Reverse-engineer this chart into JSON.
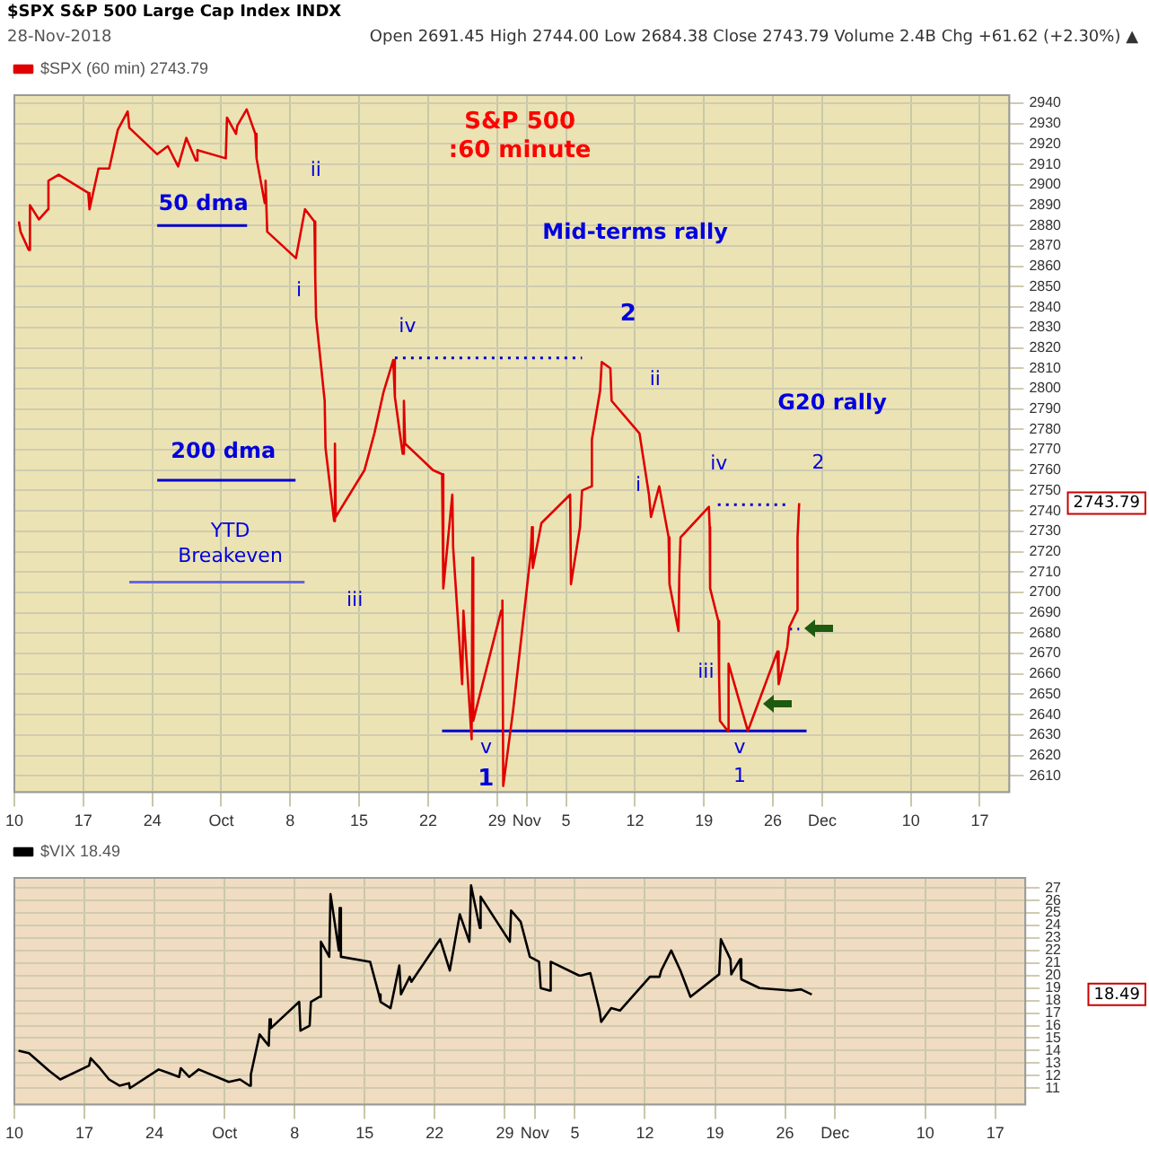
{
  "chart_data": [
    {
      "type": "line",
      "title": "$SPX S&P 500 Large Cap Index INDX",
      "subtitle": "28-Nov-2018",
      "annotations": [
        "Open 2691.45 High 2744.00 Low 2684.38 Close 2743.79 Volume 2.4B Chg +61.62 (+2.30%) ▲",
        "S&P 500\n:60 minute",
        "50 dma",
        "200 dma",
        "YTD\nBreakeven",
        "Mid-terms rally",
        "G20 rally",
        "ii",
        "i",
        "iv",
        "iii",
        "v",
        "1",
        "2",
        "ii",
        "i",
        "iv",
        "iii",
        "v",
        "1",
        "2",
        "2743.79"
      ],
      "series": [
        {
          "name": "$SPX (60 min) 2743.79",
          "color": "#e00000",
          "x": [
            "2018-09-10T11:00",
            "2018-09-10T15:00",
            "2018-09-11T11:00",
            "2018-09-11T14:00",
            "2018-09-12T12:00",
            "2018-09-13T10:00",
            "2018-09-13T11:00",
            "2018-09-14T12:00",
            "2018-09-17T12:00",
            "2018-09-17T15:00",
            "2018-09-18T13:00",
            "2018-09-19T15:00",
            "2018-09-20T12:00",
            "2018-09-21T12:00",
            "2018-09-21T16:00",
            "2018-09-24T12:00",
            "2018-09-25T14:00",
            "2018-09-26T15:00",
            "2018-09-27T11:00",
            "2018-09-28T10:00",
            "2018-09-28T14:00",
            "2018-10-01T11:00",
            "2018-10-01T14:00",
            "2018-10-02T12:00",
            "2018-10-02T15:00",
            "2018-10-03T14:00",
            "2018-10-04T11:00",
            "2018-10-04T14:00",
            "2018-10-05T10:00",
            "2018-10-05T12:00",
            "2018-10-05T16:00",
            "2018-10-08T14:00",
            "2018-10-09T12:00",
            "2018-10-10T11:00",
            "2018-10-10T13:00",
            "2018-10-10T15:00",
            "2018-10-11T12:00",
            "2018-10-11T14:00",
            "2018-10-12T11:00",
            "2018-10-12T13:00",
            "2018-10-12T15:00",
            "2018-10-15T13:00",
            "2018-10-16T13:00",
            "2018-10-17T11:00",
            "2018-10-18T11:00",
            "2018-10-18T15:00",
            "2018-10-19T10:00",
            "2018-10-19T13:00",
            "2018-10-19T16:00",
            "2018-10-22T12:00",
            "2018-10-23T10:00",
            "2018-10-23T13:00",
            "2018-10-24T11:00",
            "2018-10-24T13:00",
            "2018-10-25T11:00",
            "2018-10-25T14:00",
            "2018-10-26T10:00",
            "2018-10-26T12:00",
            "2018-10-26T14:00",
            "2018-10-29T10:00",
            "2018-10-29T13:00",
            "2018-10-29T15:00",
            "2018-10-30T15:00",
            "2018-10-31T14:00",
            "2018-11-01T10:00",
            "2018-11-01T13:00",
            "2018-11-01T15:00",
            "2018-11-02T12:00",
            "2018-11-05T10:00",
            "2018-11-05T12:00",
            "2018-11-06T10:00",
            "2018-11-06T15:00",
            "2018-11-07T14:00",
            "2018-11-07T15:00",
            "2018-11-08T11:00",
            "2018-11-08T15:00",
            "2018-11-09T12:00",
            "2018-11-09T15:00",
            "2018-11-12T11:00",
            "2018-11-12T14:00",
            "2018-11-13T10:00",
            "2018-11-13T15:00",
            "2018-11-14T11:00",
            "2018-11-15T10:00",
            "2018-11-15T12:00",
            "2018-11-16T10:00",
            "2018-11-16T12:00",
            "2018-11-16T15:00",
            "2018-11-19T12:00",
            "2018-11-19T14:00",
            "2018-11-19T15:00",
            "2018-11-20T11:00",
            "2018-11-20T13:00",
            "2018-11-20T15:00",
            "2018-11-21T10:00",
            "2018-11-21T12:00",
            "2018-11-23T11:00",
            "2018-11-26T11:00",
            "2018-11-26T14:00",
            "2018-11-27T11:00",
            "2018-11-27T16:00",
            "2018-11-28T11:00",
            "2018-11-28T12:00",
            "2018-11-28T16:00"
          ],
          "values": [
            2882,
            2877,
            2868,
            2890,
            2883,
            2888,
            2902,
            2905,
            2896,
            2888,
            2908,
            2908,
            2927,
            2936,
            2928,
            2915,
            2919,
            2909,
            2923,
            2912,
            2917,
            2913,
            2933,
            2925,
            2929,
            2937,
            2925,
            2913,
            2891,
            2902,
            2877,
            2864,
            2888,
            2882,
            2855,
            2835,
            2794,
            2771,
            2735,
            2773,
            2737,
            2760,
            2778,
            2798,
            2814,
            2796,
            2768,
            2794,
            2773,
            2760,
            2758,
            2702,
            2748,
            2722,
            2655,
            2691,
            2628,
            2717,
            2637,
            2691,
            2696,
            2605,
            2642,
            2683,
            2719,
            2732,
            2712,
            2734,
            2748,
            2704,
            2732,
            2750,
            2752,
            2775,
            2799,
            2813,
            2810,
            2794,
            2778,
            2778,
            2748,
            2737,
            2752,
            2727,
            2704,
            2681,
            2709,
            2727,
            2742,
            2732,
            2702,
            2686,
            2658,
            2637,
            2632,
            2665,
            2632,
            2671,
            2655,
            2673,
            2683,
            2691,
            2727,
            2743.79
          ]
        },
        {
          "color": "#0000cc",
          "x": [
            "2018-09-24T12:00",
            "2018-10-03T15:00"
          ],
          "values": [
            2880,
            2880
          ]
        },
        {
          "color": "#0000cc",
          "x": [
            "2018-09-24T12:00",
            "2018-10-08T13:00"
          ],
          "values": [
            2755,
            2755
          ]
        },
        {
          "color": "#6666dd",
          "x": [
            "2018-09-21T16:00",
            "2018-10-09T11:00"
          ],
          "values": [
            2705,
            2705
          ]
        },
        {
          "color": "#0000cc",
          "x": [
            "2018-10-18T15:00",
            "2018-11-06T15:00"
          ],
          "values": [
            2815,
            2815
          ],
          "line_style": "dotted"
        },
        {
          "color": "#0000cc",
          "x": [
            "2018-11-20T10:00",
            "2018-11-27T16:00"
          ],
          "values": [
            2743,
            2743
          ],
          "line_style": "dotted"
        },
        {
          "color": "#0000cc",
          "x": [
            "2018-11-27T16:00",
            "2018-11-28T16:00"
          ],
          "values": [
            2682,
            2682
          ],
          "line_style": "dotted"
        },
        {
          "color": "#0000cc",
          "x": [
            "2018-10-23T10:00",
            "2018-11-29T10:00"
          ],
          "values": [
            2632,
            2632
          ]
        }
      ],
      "xlim": [
        "2018-09-10",
        "2018-12-20"
      ],
      "xticks": [
        {
          "value": "2018-09-10",
          "label": "10"
        },
        {
          "value": "2018-09-17",
          "label": "17"
        },
        {
          "value": "2018-09-24",
          "label": "24"
        },
        {
          "value": "2018-10-01",
          "label": "Oct"
        },
        {
          "value": "2018-10-08",
          "label": "8"
        },
        {
          "value": "2018-10-15",
          "label": "15"
        },
        {
          "value": "2018-10-22",
          "label": "22"
        },
        {
          "value": "2018-10-29",
          "label": "29"
        },
        {
          "value": "2018-11-01",
          "label": "Nov"
        },
        {
          "value": "2018-11-05",
          "label": "5"
        },
        {
          "value": "2018-11-12",
          "label": "12"
        },
        {
          "value": "2018-11-19",
          "label": "19"
        },
        {
          "value": "2018-11-26",
          "label": "26"
        },
        {
          "value": "2018-12-01",
          "label": "Dec"
        },
        {
          "value": "2018-12-10",
          "label": "10"
        },
        {
          "value": "2018-12-17",
          "label": "17"
        }
      ],
      "ylim": [
        2602,
        2944
      ],
      "yticks": [
        2610,
        2620,
        2630,
        2640,
        2650,
        2660,
        2670,
        2680,
        2690,
        2700,
        2710,
        2720,
        2730,
        2740,
        2750,
        2760,
        2770,
        2780,
        2790,
        2800,
        2810,
        2820,
        2830,
        2840,
        2850,
        2860,
        2870,
        2880,
        2890,
        2900,
        2910,
        2920,
        2930,
        2940
      ],
      "grid": true,
      "legend": "top left",
      "marker": "none"
    },
    {
      "type": "line",
      "annotations": [
        "18.49"
      ],
      "series": [
        {
          "name": "$VIX 18.49",
          "color": "#000000",
          "x": [
            "2018-09-10T10:00",
            "2018-09-11T11:00",
            "2018-09-12T11:00",
            "2018-09-13T11:00",
            "2018-09-14T14:00",
            "2018-09-17T11:00",
            "2018-09-17T15:00",
            "2018-09-18T13:00",
            "2018-09-19T11:00",
            "2018-09-20T12:00",
            "2018-09-21T11:00",
            "2018-09-21T13:00",
            "2018-09-24T10:00",
            "2018-09-25T11:00",
            "2018-09-26T11:00",
            "2018-09-26T15:00",
            "2018-09-27T11:00",
            "2018-09-28T10:00",
            "2018-10-01T10:00",
            "2018-10-02T13:00",
            "2018-10-03T12:00",
            "2018-10-03T15:00",
            "2018-10-04T12:00",
            "2018-10-05T10:00",
            "2018-10-05T12:00",
            "2018-10-05T15:00",
            "2018-10-08T11:00",
            "2018-10-08T14:00",
            "2018-10-09T12:00",
            "2018-10-09T15:00",
            "2018-10-10T12:00",
            "2018-10-10T15:00",
            "2018-10-11T11:00",
            "2018-10-11T14:00",
            "2018-10-12T10:00",
            "2018-10-12T12:00",
            "2018-10-12T15:00",
            "2018-10-15T13:00",
            "2018-10-16T10:00",
            "2018-10-16T14:00",
            "2018-10-17T14:00",
            "2018-10-18T11:00",
            "2018-10-18T15:00",
            "2018-10-19T12:00",
            "2018-10-19T16:00",
            "2018-10-22T13:00",
            "2018-10-23T12:00",
            "2018-10-24T12:00",
            "2018-10-25T11:00",
            "2018-10-25T15:00",
            "2018-10-26T12:00",
            "2018-10-26T14:00",
            "2018-10-29T12:00",
            "2018-10-29T15:00",
            "2018-10-30T14:00",
            "2018-10-31T12:00",
            "2018-11-01T10:00",
            "2018-11-01T14:00",
            "2018-11-02T11:00",
            "2018-11-02T14:00",
            "2018-11-05T10:00",
            "2018-11-05T15:00",
            "2018-11-06T13:00",
            "2018-11-07T11:00",
            "2018-11-07T15:00",
            "2018-11-08T15:00",
            "2018-11-09T12:00",
            "2018-11-12T12:00",
            "2018-11-13T11:00",
            "2018-11-13T15:00",
            "2018-11-14T15:00",
            "2018-11-15T13:00",
            "2018-11-16T13:00",
            "2018-11-19T10:00",
            "2018-11-19T14:00",
            "2018-11-20T13:00",
            "2018-11-20T15:00",
            "2018-11-21T12:00",
            "2018-11-21T15:00",
            "2018-11-23T11:00",
            "2018-11-26T14:00",
            "2018-11-27T14:00",
            "2018-11-28T16:00"
          ],
          "values": [
            14.0,
            13.8,
            13.1,
            12.4,
            11.7,
            12.8,
            13.4,
            12.6,
            11.7,
            11.2,
            11.4,
            11.0,
            12.5,
            12.2,
            11.9,
            12.6,
            11.9,
            12.5,
            11.5,
            11.7,
            11.2,
            12.1,
            15.3,
            14.4,
            16.5,
            15.8,
            17.9,
            15.6,
            16.0,
            17.9,
            18.3,
            22.7,
            21.5,
            26.5,
            22.0,
            25.4,
            21.5,
            21.1,
            18.5,
            17.9,
            17.4,
            20.8,
            18.5,
            19.9,
            19.5,
            22.9,
            20.4,
            24.9,
            22.7,
            27.2,
            23.8,
            26.3,
            22.7,
            25.2,
            24.3,
            21.5,
            21.1,
            19.0,
            18.8,
            21.1,
            20.0,
            20.0,
            20.2,
            17.2,
            16.3,
            17.4,
            17.2,
            19.9,
            19.9,
            20.4,
            22.0,
            20.4,
            18.3,
            20.1,
            22.9,
            21.3,
            20.1,
            21.3,
            19.7,
            19.0,
            18.8,
            18.9,
            18.49
          ]
        }
      ],
      "xlim": [
        "2018-09-10",
        "2018-12-20"
      ],
      "xticks": [
        {
          "value": "2018-09-10",
          "label": "10"
        },
        {
          "value": "2018-09-17",
          "label": "17"
        },
        {
          "value": "2018-09-24",
          "label": "24"
        },
        {
          "value": "2018-10-01",
          "label": "Oct"
        },
        {
          "value": "2018-10-08",
          "label": "8"
        },
        {
          "value": "2018-10-15",
          "label": "15"
        },
        {
          "value": "2018-10-22",
          "label": "22"
        },
        {
          "value": "2018-10-29",
          "label": "29"
        },
        {
          "value": "2018-11-01",
          "label": "Nov"
        },
        {
          "value": "2018-11-05",
          "label": "5"
        },
        {
          "value": "2018-11-12",
          "label": "12"
        },
        {
          "value": "2018-11-19",
          "label": "19"
        },
        {
          "value": "2018-11-26",
          "label": "26"
        },
        {
          "value": "2018-12-01",
          "label": "Dec"
        },
        {
          "value": "2018-12-10",
          "label": "10"
        },
        {
          "value": "2018-12-17",
          "label": "17"
        }
      ],
      "ylim": [
        9.7,
        27.8
      ],
      "yticks": [
        11,
        12,
        13,
        14,
        15,
        16,
        17,
        18,
        19,
        20,
        21,
        22,
        23,
        24,
        25,
        26,
        27
      ],
      "grid": true,
      "legend": "top left",
      "marker": "none"
    }
  ]
}
